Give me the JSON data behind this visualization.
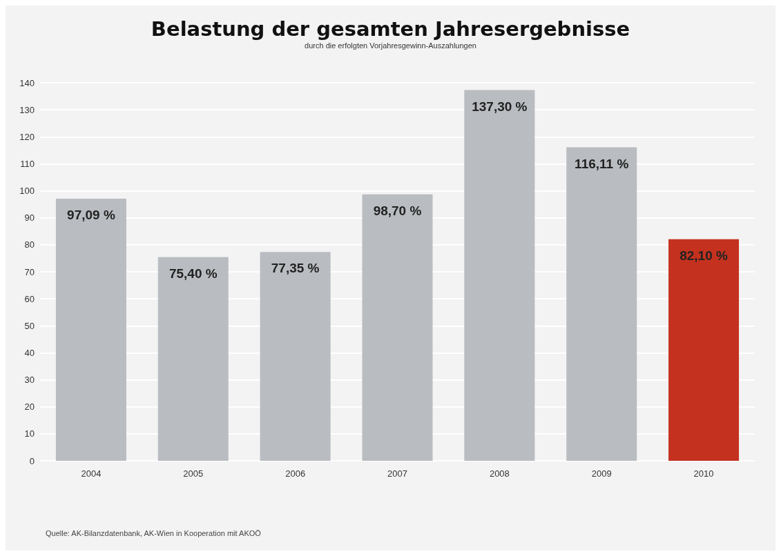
{
  "chart_data": {
    "type": "bar",
    "title": "Belastung der gesamten Jahresergebnisse",
    "subtitle": "durch die erfolgten Vorjahresgewinn-Auszahlungen",
    "categories": [
      "2004",
      "2005",
      "2006",
      "2007",
      "2008",
      "2009",
      "2010"
    ],
    "values": [
      97.09,
      75.4,
      77.35,
      98.7,
      137.3,
      116.11,
      82.1
    ],
    "value_labels": [
      "97,09 %",
      "75,40 %",
      "77,35 %",
      "98,70 %",
      "137,30 %",
      "116,11 %",
      "82,10 %"
    ],
    "colors": [
      "#b9bcc0",
      "#b9bcc0",
      "#b9bcc0",
      "#b9bcc0",
      "#b9bcc0",
      "#b9bcc0",
      "#c4321f"
    ],
    "ylim": [
      0,
      140
    ],
    "yticks": [
      0,
      10,
      20,
      30,
      40,
      50,
      60,
      70,
      80,
      90,
      100,
      110,
      120,
      130,
      140
    ],
    "grid": "y",
    "annotations": [
      "Quelle: AK-Bilanzdatenbank, AK-Wien in Kooperation mit AKOÖ"
    ]
  }
}
